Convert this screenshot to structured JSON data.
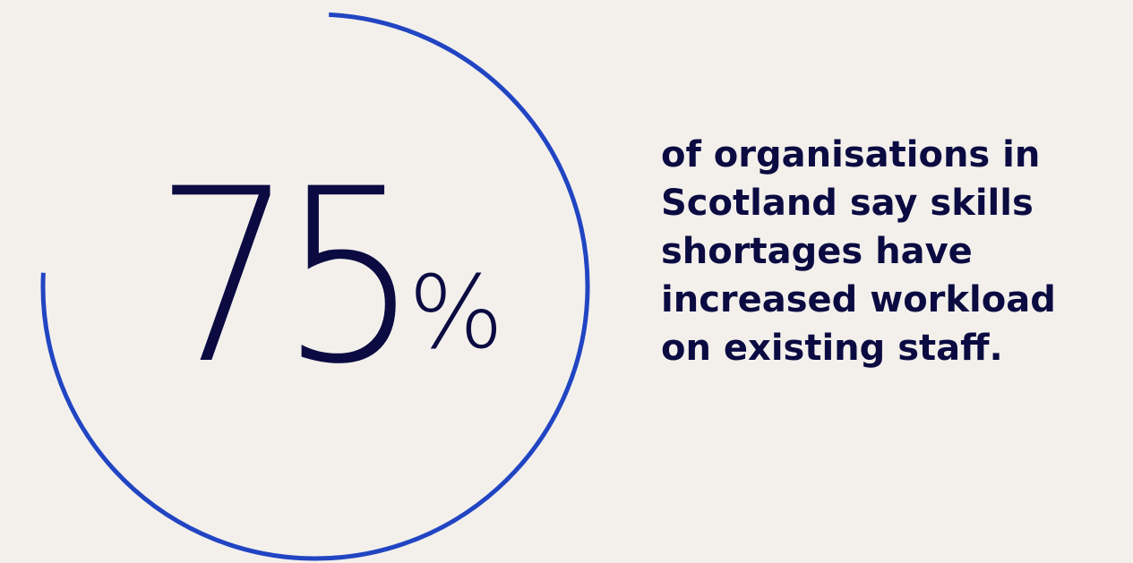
{
  "stat": {
    "value": "75",
    "unit": "%",
    "ring_progress": 0.75
  },
  "statement": {
    "lines": [
      "of organisations in",
      "Scotland say skills",
      "shortages have",
      "increased workload",
      "on existing staff."
    ]
  },
  "colors": {
    "background": "#f3f0ec",
    "ring": "#2145c2",
    "text": "#0b0b42"
  }
}
